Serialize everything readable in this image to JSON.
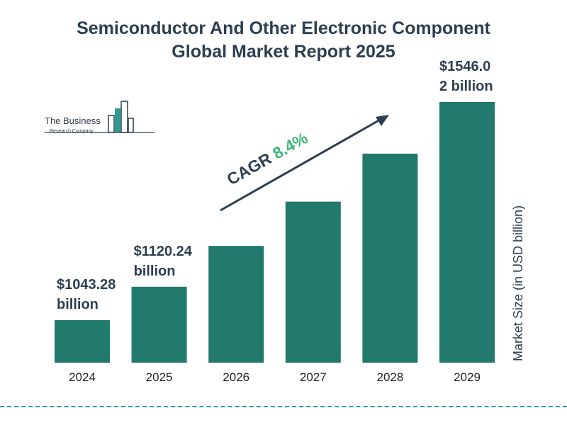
{
  "title_line1": "Semiconductor And Other Electronic Component",
  "title_line2": "Global Market Report 2025",
  "logo": {
    "line1": "The Business",
    "line2": "Research Company"
  },
  "chart_data": {
    "type": "bar",
    "categories": [
      "2024",
      "2025",
      "2026",
      "2027",
      "2028",
      "2029"
    ],
    "values": [
      1043.28,
      1120.24,
      1214.4,
      1316.4,
      1427.0,
      1546.02
    ],
    "ylabel": "Market Size (in USD billion)",
    "bar_color": "#217a6b",
    "data_labels": [
      {
        "index": 0,
        "lines": [
          "$1043.28",
          "billion"
        ]
      },
      {
        "index": 1,
        "lines": [
          "$1120.24",
          "billion"
        ]
      },
      {
        "index": 5,
        "lines": [
          "$1546.0",
          "2 billion"
        ]
      }
    ],
    "annotation": {
      "prefix": "CAGR",
      "value": "8.4%",
      "prefix_color": "#2d3e50",
      "value_color": "#3cb878"
    }
  }
}
